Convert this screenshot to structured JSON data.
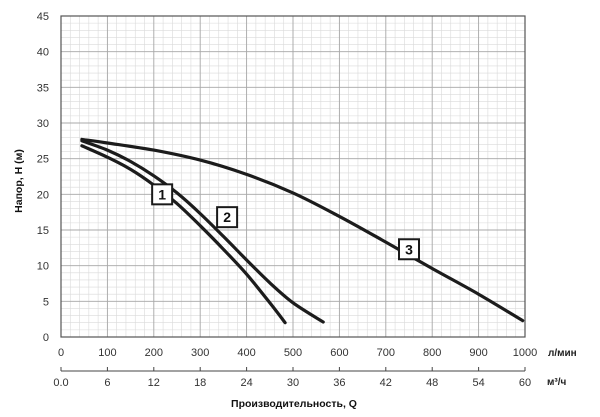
{
  "chart_data": {
    "type": "line",
    "ylabel": "Напор, H (м)",
    "xlabel": "Производительность, Q",
    "x_unit_primary": "л/мин",
    "x_unit_secondary": "м³/ч",
    "xlim": [
      0,
      1000
    ],
    "ylim": [
      0,
      45
    ],
    "x_ticks": [
      "0",
      "100",
      "200",
      "300",
      "400",
      "500",
      "600",
      "700",
      "800",
      "900",
      "1000"
    ],
    "x2_ticks": [
      "0.0",
      "6",
      "12",
      "18",
      "24",
      "30",
      "36",
      "42",
      "48",
      "54",
      "60"
    ],
    "y_ticks": [
      "0",
      "5",
      "10",
      "15",
      "20",
      "25",
      "30",
      "35",
      "40",
      "45"
    ],
    "grid": true,
    "series": [
      {
        "name": "1",
        "points": [
          [
            45,
            26.8
          ],
          [
            100,
            25.2
          ],
          [
            150,
            23.5
          ],
          [
            200,
            21.3
          ],
          [
            250,
            18.7
          ],
          [
            300,
            15.6
          ],
          [
            350,
            12.3
          ],
          [
            400,
            8.8
          ],
          [
            450,
            4.8
          ],
          [
            483,
            2
          ]
        ],
        "label_at": [
          218,
          20
        ]
      },
      {
        "name": "2",
        "points": [
          [
            45,
            27.5
          ],
          [
            100,
            26.2
          ],
          [
            150,
            24.6
          ],
          [
            200,
            22.6
          ],
          [
            250,
            20.2
          ],
          [
            300,
            17.3
          ],
          [
            350,
            14.1
          ],
          [
            400,
            10.8
          ],
          [
            450,
            7.6
          ],
          [
            500,
            4.8
          ],
          [
            565,
            2.1
          ]
        ],
        "label_at": [
          358,
          16.8
        ]
      },
      {
        "name": "3",
        "points": [
          [
            45,
            27.7
          ],
          [
            100,
            27.2
          ],
          [
            200,
            26.2
          ],
          [
            300,
            24.8
          ],
          [
            400,
            22.8
          ],
          [
            500,
            20.2
          ],
          [
            600,
            16.9
          ],
          [
            700,
            13.3
          ],
          [
            800,
            9.6
          ],
          [
            900,
            6
          ],
          [
            995,
            2.3
          ]
        ],
        "label_at": [
          750,
          12.3
        ]
      }
    ]
  }
}
